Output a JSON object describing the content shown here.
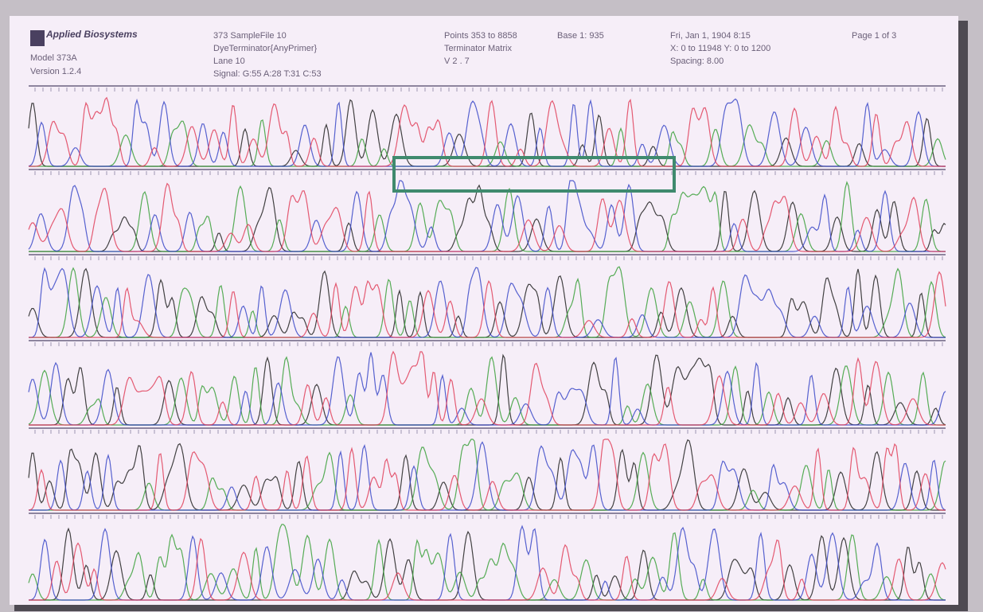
{
  "header": {
    "logo": "Applied Biosystems",
    "model": "Model 373A",
    "version": "Version 1.2.4",
    "sample": "373 SampleFile 10",
    "chemistry": "DyeTerminator{AnyPrimer}",
    "lane": "Lane 10",
    "signal": "Signal: G:55 A:28 T:31 C:53",
    "points": "Points 353 to 8858",
    "base": "Base 1: 935",
    "matrix": "Terminator Matrix",
    "software": "V 2 . 7",
    "date": "Fri, Jan 1, 1904  8:15",
    "range": "X: 0 to 11948  Y: 0 to 1200",
    "spacing": "Spacing: 8.00",
    "page": "Page 1 of 3"
  }
}
